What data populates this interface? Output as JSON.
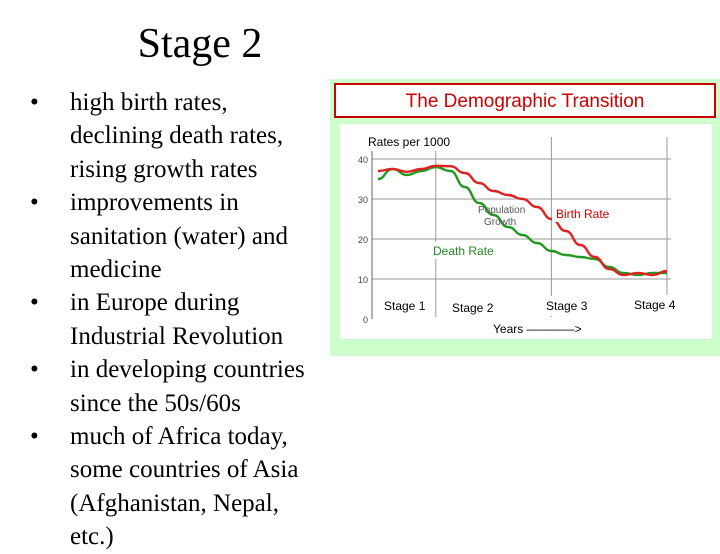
{
  "slide": {
    "title": "Stage 2",
    "bullets": [
      [
        "high birth rates,",
        "declining death rates,",
        "rising growth rates"
      ],
      [
        "improvements in",
        "sanitation (water) and",
        "medicine"
      ],
      [
        "in Europe during",
        "Industrial Revolution"
      ],
      [
        "in developing countries",
        "since the 50s/60s"
      ],
      [
        "much of Africa today,",
        "some countries of Asia",
        "(Afghanistan, Nepal,",
        "etc.)"
      ]
    ]
  },
  "colors": {
    "frame_background": "#ccffcc",
    "title_border": "#cc0000",
    "birth_rate": "#dd2222",
    "death_rate": "#229922"
  },
  "chart_data": {
    "type": "line",
    "title": "The Demographic Transition",
    "ylabel": "Rates per 1000",
    "xlabel": "Years ————>",
    "ylim": [
      0,
      42
    ],
    "yticks": [
      0,
      10,
      20,
      30,
      40
    ],
    "x_range": [
      0,
      100
    ],
    "grid": true,
    "stage_labels": [
      "Stage 1",
      "Stage 2",
      "Stage 3",
      "Stage 4"
    ],
    "annotations": [
      "Population Growth"
    ],
    "series": [
      {
        "name": "Birth Rate",
        "x": [
          0,
          5,
          10,
          15,
          20,
          25,
          30,
          35,
          40,
          45,
          50,
          55,
          60,
          65,
          70,
          75,
          80,
          85,
          90,
          95,
          100
        ],
        "values": [
          37,
          37.5,
          36.8,
          37.5,
          38.3,
          38.2,
          36.5,
          34,
          32,
          31,
          30,
          28,
          25,
          22,
          18.5,
          15.5,
          12.5,
          11,
          11.5,
          11,
          12
        ]
      },
      {
        "name": "Death Rate",
        "x": [
          0,
          5,
          10,
          15,
          20,
          25,
          30,
          35,
          40,
          45,
          50,
          55,
          60,
          65,
          70,
          75,
          80,
          85,
          90,
          95,
          100
        ],
        "values": [
          35,
          37.5,
          36,
          37,
          38,
          37,
          33,
          29,
          26,
          23,
          21,
          19,
          17,
          16,
          15.5,
          15,
          13,
          11.5,
          11,
          11.5,
          11.5
        ]
      }
    ]
  }
}
